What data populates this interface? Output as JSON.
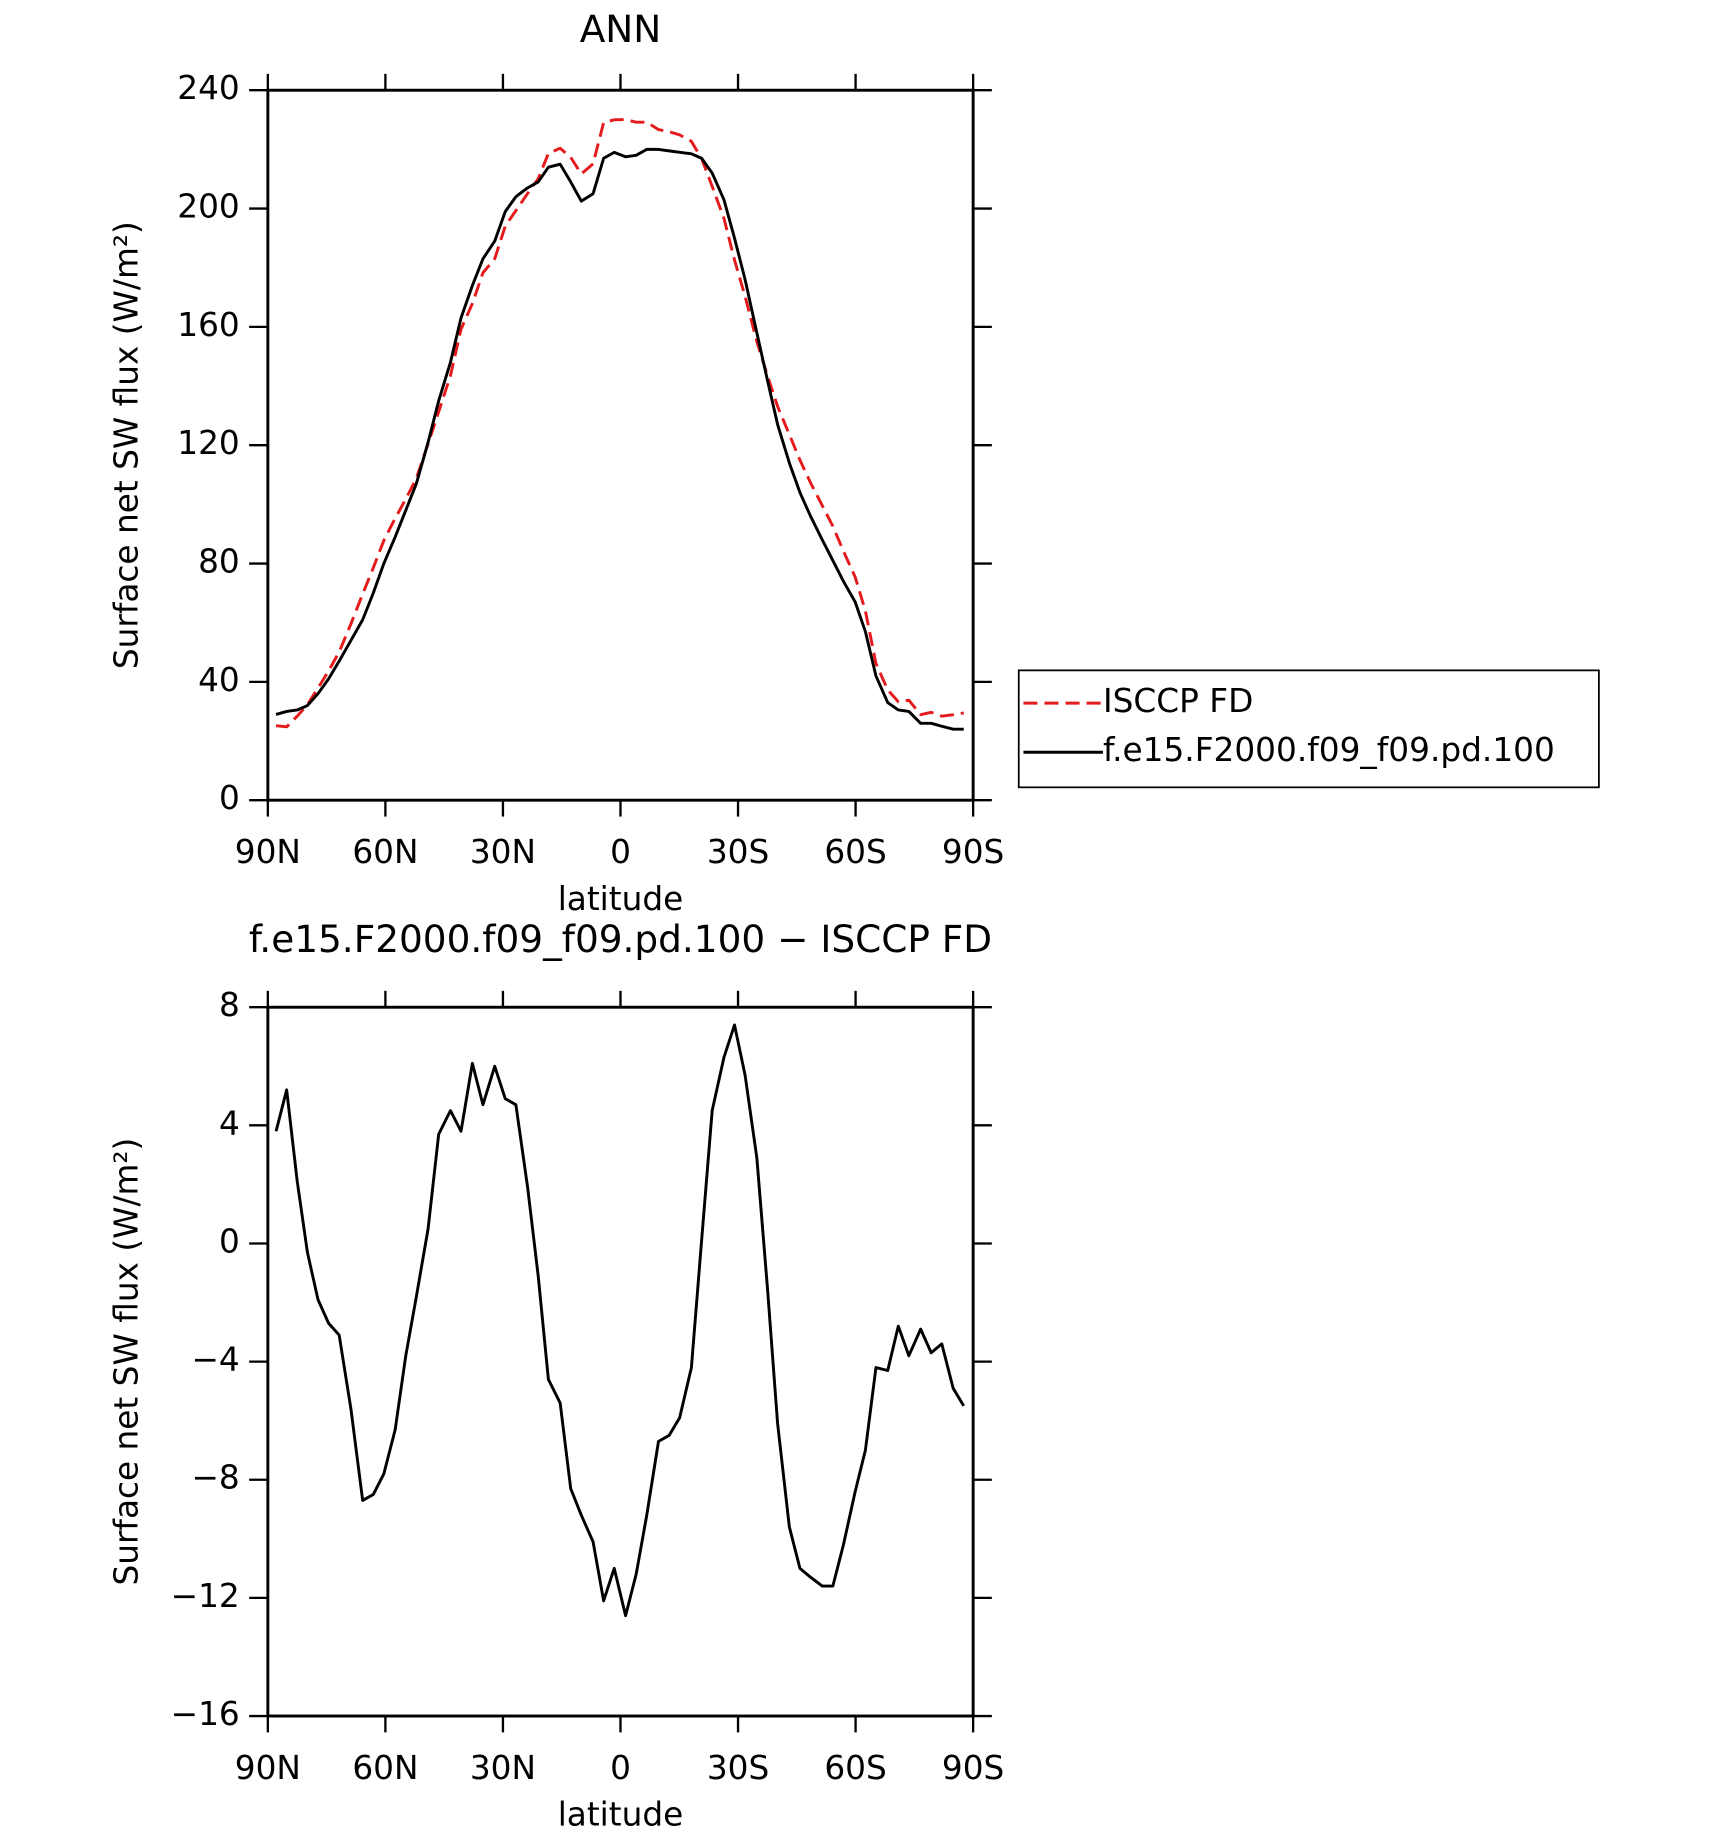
{
  "chart_data": [
    {
      "type": "line",
      "title": "ANN",
      "xlabel": "latitude",
      "ylabel": "Surface net SW flux (W/m²)",
      "x": [
        87.9,
        85.2,
        82.5,
        79.9,
        77.2,
        74.5,
        71.8,
        68.8,
        65.8,
        63.1,
        60.4,
        57.5,
        54.8,
        52.1,
        49.1,
        46.4,
        43.4,
        40.7,
        37.8,
        35.1,
        32.1,
        29.4,
        26.7,
        23.7,
        21.0,
        18.4,
        15.4,
        12.7,
        10.0,
        7.0,
        4.3,
        1.6,
        -1.3,
        -4.0,
        -6.7,
        -9.7,
        -12.4,
        -15.1,
        -18.1,
        -20.7,
        -23.4,
        -26.4,
        -29.1,
        -31.8,
        -34.8,
        -37.5,
        -40.1,
        -43.1,
        -45.8,
        -48.5,
        -51.5,
        -54.2,
        -56.9,
        -59.9,
        -62.5,
        -65.2,
        -68.2,
        -70.9,
        -73.6,
        -76.6,
        -79.3,
        -82.0,
        -84.9,
        -87.6
      ],
      "series": [
        {
          "name": "ISCCP FD",
          "color": "#e41a1c",
          "line_style": "dashed",
          "values": [
            25.2,
            24.8,
            28.4,
            32.3,
            37.9,
            43.7,
            50.1,
            59.6,
            69.7,
            78.5,
            87.8,
            95.3,
            101.8,
            108.8,
            120.5,
            131.3,
            143.5,
            159.2,
            167.9,
            178.3,
            183,
            194.1,
            199.3,
            205.1,
            210.1,
            218.6,
            220.4,
            217.3,
            211.7,
            215.1,
            229.1,
            230,
            230.1,
            229.2,
            229.2,
            226.7,
            226,
            224.9,
            222.7,
            216.9,
            207.5,
            196.7,
            182.6,
            170.3,
            155.1,
            143.5,
            133.1,
            123.6,
            115,
            107.3,
            99.6,
            92.6,
            84.2,
            75.4,
            64,
            46.2,
            37.3,
            33.3,
            33.8,
            28.9,
            29.7,
            28.4,
            28.9,
            29.5
          ]
        },
        {
          "name": "f.e15.F2000.f09_f09.pd.100",
          "color": "#000000",
          "line_style": "solid",
          "values": [
            29,
            30,
            30.5,
            32,
            36,
            41,
            47,
            54,
            61,
            70,
            80,
            89,
            98,
            107,
            121,
            135,
            148,
            163,
            174,
            183,
            189,
            199,
            204,
            207,
            209,
            214,
            215,
            209,
            202.5,
            205,
            217,
            219,
            217.5,
            218,
            220,
            220,
            219.5,
            219,
            218.5,
            217,
            212,
            203,
            190,
            176,
            158,
            142,
            127,
            114,
            104,
            96,
            88,
            81,
            74,
            67,
            57,
            42,
            33,
            30.5,
            30,
            26,
            26,
            25,
            24,
            24
          ]
        }
      ],
      "xlim": [
        90,
        -90
      ],
      "xticks": [
        {
          "value": 90,
          "label": "90N"
        },
        {
          "value": 60,
          "label": "60N"
        },
        {
          "value": 30,
          "label": "30N"
        },
        0,
        {
          "value": -30,
          "label": "30S"
        },
        {
          "value": -60,
          "label": "60S"
        },
        {
          "value": -90,
          "label": "90S"
        }
      ],
      "ylim": [
        0,
        240
      ],
      "yticks": [
        0,
        40,
        80,
        120,
        160,
        200,
        240
      ],
      "legend": "outside-right"
    },
    {
      "type": "line",
      "title": "f.e15.F2000.f09_f09.pd.100 − ISCCP FD",
      "xlabel": "latitude",
      "ylabel": "Surface net SW flux (W/m²)",
      "x": [
        87.9,
        85.2,
        82.5,
        79.9,
        77.2,
        74.5,
        71.8,
        68.8,
        65.8,
        63.1,
        60.4,
        57.5,
        54.8,
        52.1,
        49.1,
        46.4,
        43.4,
        40.7,
        37.8,
        35.1,
        32.1,
        29.4,
        26.7,
        23.7,
        21.0,
        18.4,
        15.4,
        12.7,
        10.0,
        7.0,
        4.3,
        1.6,
        -1.3,
        -4.0,
        -6.7,
        -9.7,
        -12.4,
        -15.1,
        -18.1,
        -20.7,
        -23.4,
        -26.4,
        -29.1,
        -31.8,
        -34.8,
        -37.5,
        -40.1,
        -43.1,
        -45.8,
        -48.5,
        -51.5,
        -54.2,
        -56.9,
        -59.9,
        -62.5,
        -65.2,
        -68.2,
        -70.9,
        -73.6,
        -76.6,
        -79.3,
        -82.0,
        -84.9,
        -87.6
      ],
      "values": [
        3.8,
        5.2,
        2.1,
        -0.3,
        -1.9,
        -2.7,
        -3.1,
        -5.6,
        -8.7,
        -8.5,
        -7.8,
        -6.3,
        -3.8,
        -1.8,
        0.5,
        3.7,
        4.5,
        3.8,
        6.1,
        4.7,
        6.0,
        4.9,
        4.7,
        1.9,
        -1.1,
        -4.6,
        -5.4,
        -8.3,
        -9.2,
        -10.1,
        -12.1,
        -11.0,
        -12.6,
        -11.2,
        -9.2,
        -6.7,
        -6.5,
        -5.9,
        -4.2,
        0.1,
        4.5,
        6.3,
        7.4,
        5.7,
        2.9,
        -1.5,
        -6.1,
        -9.6,
        -11.0,
        -11.3,
        -11.6,
        -11.6,
        -10.2,
        -8.4,
        -7.0,
        -4.2,
        -4.3,
        -2.8,
        -3.8,
        -2.9,
        -3.7,
        -3.4,
        -4.9,
        -5.5
      ],
      "color": "#000000",
      "xlim": [
        90,
        -90
      ],
      "xticks": [
        {
          "value": 90,
          "label": "90N"
        },
        {
          "value": 60,
          "label": "60N"
        },
        {
          "value": 30,
          "label": "30N"
        },
        0,
        {
          "value": -30,
          "label": "30S"
        },
        {
          "value": -60,
          "label": "60S"
        },
        {
          "value": -90,
          "label": "90S"
        }
      ],
      "ylim": [
        -16,
        8
      ],
      "yticks": [
        {
          "value": -16,
          "label": "−16"
        },
        {
          "value": -12,
          "label": "−12"
        },
        {
          "value": -8,
          "label": "−8"
        },
        {
          "value": -4,
          "label": "−4"
        },
        0,
        4,
        8
      ]
    }
  ]
}
